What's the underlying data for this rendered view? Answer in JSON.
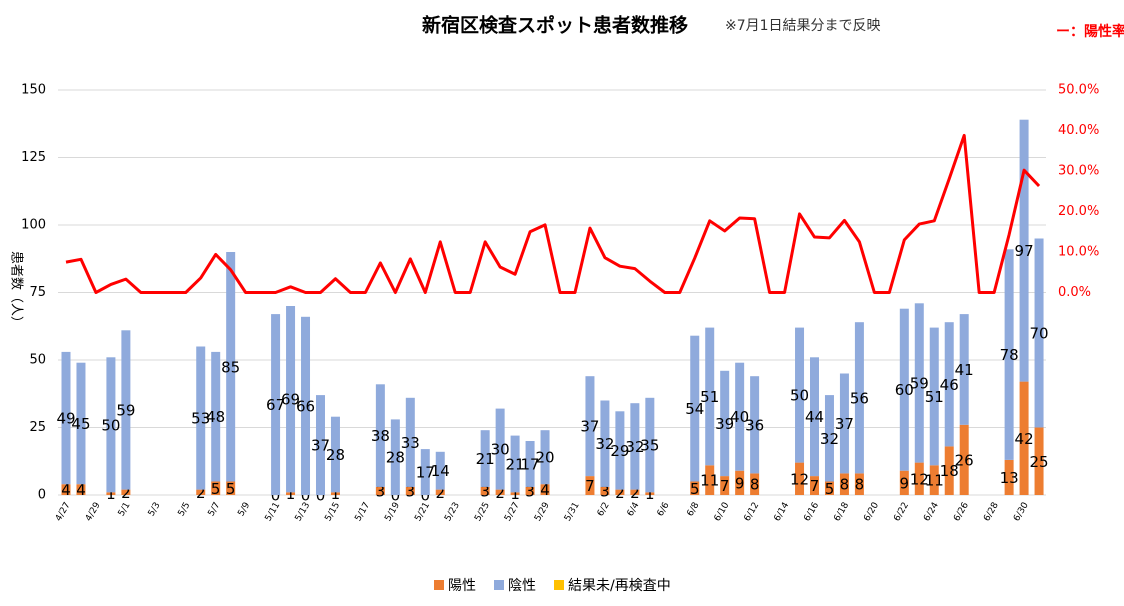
{
  "chart_data": {
    "type": "bar",
    "title": "新宿区検査スポット患者数推移",
    "subtitle": "※7月1日結果分まで反映",
    "y_label": "患者数（人）",
    "categories": [
      "4/27",
      null,
      "4/29",
      null,
      "5/1",
      null,
      "5/3",
      null,
      "5/5",
      null,
      "5/7",
      null,
      "5/9",
      null,
      "5/11",
      null,
      "5/13",
      null,
      "5/15",
      null,
      "5/17",
      null,
      "5/19",
      null,
      "5/21",
      null,
      "5/23",
      null,
      "5/25",
      null,
      "5/27",
      null,
      "5/29",
      null,
      "5/31",
      null,
      "6/2",
      null,
      "6/4",
      null,
      "6/6",
      null,
      "6/8",
      null,
      "6/10",
      null,
      "6/12",
      null,
      "6/14",
      null,
      "6/16",
      null,
      "6/18",
      null,
      "6/20",
      null,
      "6/22",
      null,
      "6/24",
      null,
      "6/26",
      null,
      "6/28",
      null,
      "6/30",
      null
    ],
    "ylim": [
      0,
      150
    ],
    "yticks": [
      0,
      25,
      50,
      75,
      100,
      125,
      150
    ],
    "y2lim": [
      -50,
      50
    ],
    "y2ticks": [
      {
        "value": 0,
        "label": "0.0%"
      },
      {
        "value": 10,
        "label": "10.0%"
      },
      {
        "value": 20,
        "label": "20.0%"
      },
      {
        "value": 30,
        "label": "30.0%"
      },
      {
        "value": 40,
        "label": "40.0%"
      },
      {
        "value": 50,
        "label": "50.0%"
      }
    ],
    "grid": true,
    "legend": "bottom",
    "series": [
      {
        "name": "陽性",
        "color": "#ED7D31",
        "values": [
          4,
          4,
          null,
          1,
          2,
          null,
          null,
          null,
          null,
          2,
          5,
          5,
          null,
          null,
          0,
          1,
          0,
          0,
          1,
          null,
          null,
          3,
          0,
          3,
          0,
          2,
          null,
          null,
          3,
          2,
          1,
          3,
          4,
          null,
          null,
          7,
          3,
          2,
          2,
          1,
          null,
          null,
          5,
          11,
          7,
          9,
          8,
          null,
          null,
          12,
          7,
          5,
          8,
          8,
          null,
          null,
          9,
          12,
          11,
          18,
          26,
          null,
          null,
          13,
          42,
          25
        ]
      },
      {
        "name": "陰性",
        "color": "#8FAADC",
        "values": [
          49,
          45,
          null,
          50,
          59,
          null,
          null,
          null,
          null,
          53,
          48,
          85,
          null,
          null,
          67,
          69,
          66,
          37,
          28,
          null,
          null,
          38,
          28,
          33,
          17,
          14,
          null,
          null,
          21,
          30,
          21,
          17,
          20,
          null,
          null,
          37,
          32,
          29,
          32,
          35,
          null,
          null,
          54,
          51,
          39,
          40,
          36,
          null,
          null,
          50,
          44,
          32,
          37,
          56,
          null,
          null,
          60,
          59,
          51,
          46,
          41,
          null,
          null,
          78,
          97,
          70
        ]
      },
      {
        "name": "結果未/再検査中",
        "color": "#FFC000",
        "values": [
          0,
          0,
          null,
          0,
          0,
          null,
          null,
          null,
          null,
          0,
          0,
          0,
          null,
          null,
          0,
          0,
          0,
          0,
          0,
          null,
          null,
          0,
          0,
          0,
          0,
          0,
          null,
          null,
          0,
          0,
          0,
          0,
          0,
          null,
          null,
          0,
          0,
          0,
          0,
          0,
          null,
          null,
          0,
          0,
          0,
          0,
          0,
          null,
          null,
          0,
          0,
          0,
          0,
          0,
          null,
          null,
          0,
          0,
          0,
          0,
          0,
          null,
          null,
          0,
          0,
          0
        ]
      },
      {
        "name": "ー：陽性率",
        "type": "line",
        "axis": "y2",
        "color": "#FF0000",
        "values": [
          7.5,
          8.2,
          0,
          2.0,
          3.3,
          0,
          0,
          0,
          0,
          3.6,
          9.4,
          5.6,
          0,
          0,
          0,
          1.4,
          0,
          0,
          3.4,
          0,
          0,
          7.3,
          0,
          8.3,
          0,
          12.5,
          0,
          0,
          12.5,
          6.3,
          4.5,
          15.0,
          16.7,
          0,
          0,
          15.9,
          8.6,
          6.5,
          5.9,
          2.8,
          0,
          0,
          8.5,
          17.7,
          15.2,
          18.4,
          18.2,
          0,
          0,
          19.4,
          13.7,
          13.5,
          17.8,
          12.5,
          0,
          0,
          13.0,
          16.9,
          17.7,
          28.1,
          38.8,
          0,
          0,
          14.3,
          30.2,
          26.3
        ]
      }
    ]
  }
}
